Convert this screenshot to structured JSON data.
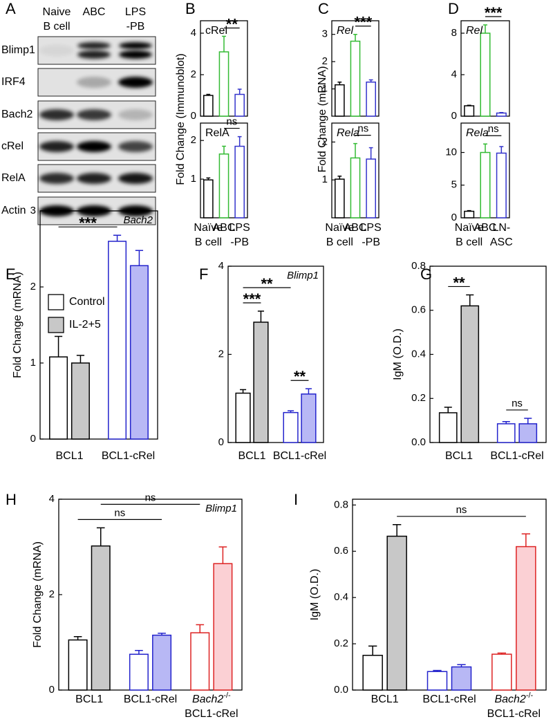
{
  "blot": {
    "panel": "A",
    "lanes": [
      [
        "Naive",
        "B cell"
      ],
      [
        "ABC"
      ],
      [
        "LPS",
        "-PB"
      ]
    ],
    "rows": [
      "Blimp1",
      "IRF4",
      "Bach2",
      "cRel",
      "RelA",
      "Actin"
    ]
  },
  "chart_data": [
    {
      "type": "bar",
      "panel": "B",
      "ylabel": "Fold Change (Immunoblot)",
      "title_italic": false,
      "categories": [
        [
          "Naïve",
          "B cell"
        ],
        [
          "ABC"
        ],
        [
          "LPS",
          "-PB"
        ]
      ],
      "colors": [
        "#000000",
        "#33bb33",
        "#3333cc"
      ],
      "subplots": [
        {
          "title": "cRel",
          "values": [
            1.0,
            3.1,
            1.05
          ],
          "errors": [
            0.05,
            0.75,
            0.25
          ],
          "ylim": [
            0,
            4.6
          ],
          "yticks": [
            0,
            2,
            4
          ],
          "annotations": [
            {
              "text": "**",
              "between": [
                1,
                2
              ]
            }
          ]
        },
        {
          "title": "RelA",
          "values": [
            0.98,
            1.65,
            1.85
          ],
          "errors": [
            0.05,
            0.2,
            0.25
          ],
          "ylim": [
            0,
            2.45
          ],
          "yticks": [
            1,
            2
          ],
          "annotations": [
            {
              "text": "ns",
              "between": [
                1,
                2
              ]
            }
          ]
        }
      ]
    },
    {
      "type": "bar",
      "panel": "C",
      "ylabel": "Fold Change (mRNA)",
      "title_italic": true,
      "categories": [
        [
          "Naïve",
          "B cell"
        ],
        [
          "ABC"
        ],
        [
          "LPS",
          "-PB"
        ]
      ],
      "colors": [
        "#000000",
        "#33bb33",
        "#3333cc"
      ],
      "subplots": [
        {
          "title": "Rel",
          "values": [
            1.15,
            2.75,
            1.25
          ],
          "errors": [
            0.1,
            0.25,
            0.08
          ],
          "ylim": [
            0,
            3.5
          ],
          "yticks": [
            1,
            2,
            3
          ],
          "annotations": [
            {
              "text": "***",
              "between": [
                1,
                2
              ]
            }
          ]
        },
        {
          "title": "Rela",
          "values": [
            1.02,
            1.58,
            1.55
          ],
          "errors": [
            0.08,
            0.38,
            0.3
          ],
          "ylim": [
            0,
            2.5
          ],
          "yticks": [
            1,
            2
          ],
          "annotations": [
            {
              "text": "ns",
              "between": [
                1,
                2
              ]
            }
          ]
        }
      ]
    },
    {
      "type": "bar",
      "panel": "D",
      "title_italic": true,
      "categories": [
        [
          "Naïve",
          "B cell"
        ],
        [
          "ABC"
        ],
        [
          "LN-",
          "ASC"
        ]
      ],
      "colors": [
        "#000000",
        "#33bb33",
        "#3333cc"
      ],
      "subplots": [
        {
          "title": "Rel",
          "values": [
            1.0,
            8.0,
            0.3
          ],
          "errors": [
            0.05,
            0.8,
            0.05
          ],
          "ylim": [
            0,
            9.2
          ],
          "yticks": [
            0,
            4,
            8
          ],
          "annotations": [
            {
              "text": "***",
              "between": [
                1,
                2
              ]
            }
          ]
        },
        {
          "title": "Rela",
          "values": [
            1.0,
            10.0,
            9.9
          ],
          "errors": [
            0.1,
            1.3,
            1.0
          ],
          "ylim": [
            0,
            14.5
          ],
          "yticks": [
            0,
            5,
            10
          ],
          "annotations": [
            {
              "text": "ns",
              "between": [
                1,
                2
              ]
            }
          ]
        }
      ]
    },
    {
      "type": "grouped_bar",
      "panel": "E",
      "title": "Bach2",
      "title_italic": true,
      "ylabel": "Fold Change (mRNA)",
      "categories": [
        [
          "BCL1"
        ],
        [
          "BCL1-cRel"
        ]
      ],
      "group_colors": [
        "#000000",
        "#2222cc"
      ],
      "series": [
        {
          "name": "Control",
          "fills": [
            "#ffffff",
            "#ffffff"
          ],
          "values": [
            1.08,
            2.6
          ],
          "errors": [
            0.27,
            0.08
          ]
        },
        {
          "name": "IL-2+5",
          "fills": [
            "#c8c8c8",
            "#b8b8f5"
          ],
          "values": [
            1.0,
            2.28
          ],
          "errors": [
            0.1,
            0.2
          ]
        }
      ],
      "ylim": [
        0,
        3
      ],
      "yticks": [
        0,
        1,
        2,
        3
      ],
      "legend": "upper left",
      "annotations": [
        {
          "text": "***",
          "between": [
            0,
            2
          ]
        }
      ]
    },
    {
      "type": "grouped_bar",
      "panel": "F",
      "title": "Blimp1",
      "title_italic": true,
      "categories": [
        [
          "BCL1"
        ],
        [
          "BCL1-cRel"
        ]
      ],
      "group_colors": [
        "#000000",
        "#2222cc"
      ],
      "series": [
        {
          "fills": [
            "#ffffff",
            "#ffffff"
          ],
          "values": [
            1.12,
            0.68
          ],
          "errors": [
            0.08,
            0.04
          ]
        },
        {
          "fills": [
            "#c8c8c8",
            "#b8b8f5"
          ],
          "values": [
            2.73,
            1.1
          ],
          "errors": [
            0.25,
            0.12
          ]
        }
      ],
      "ylim": [
        0,
        4
      ],
      "yticks": [
        0,
        2,
        4
      ],
      "annotations": [
        {
          "text": "***",
          "between": [
            0,
            1
          ]
        },
        {
          "text": "**",
          "between": [
            0,
            2
          ]
        },
        {
          "text": "**",
          "between": [
            2,
            3
          ]
        }
      ]
    },
    {
      "type": "grouped_bar",
      "panel": "G",
      "ylabel": "IgM (O.D.)",
      "categories": [
        [
          "BCL1"
        ],
        [
          "BCL1-cRel"
        ]
      ],
      "group_colors": [
        "#000000",
        "#2222cc"
      ],
      "series": [
        {
          "fills": [
            "#ffffff",
            "#ffffff"
          ],
          "values": [
            0.135,
            0.085
          ],
          "errors": [
            0.025,
            0.01
          ]
        },
        {
          "fills": [
            "#c8c8c8",
            "#b8b8f5"
          ],
          "values": [
            0.62,
            0.085
          ],
          "errors": [
            0.05,
            0.025
          ]
        }
      ],
      "ylim": [
        0,
        0.8
      ],
      "yticks": [
        {
          "value": 0,
          "label": "0.0"
        },
        0.2,
        0.4,
        0.6,
        0.8
      ],
      "annotations": [
        {
          "text": "**",
          "between": [
            0,
            1
          ]
        },
        {
          "text": "ns",
          "between": [
            2,
            3
          ]
        }
      ]
    },
    {
      "type": "grouped_bar",
      "panel": "H",
      "title": "Blimp1",
      "title_italic": true,
      "ylabel": "Fold Change (mRNA)",
      "categories": [
        [
          "BCL1"
        ],
        [
          "BCL1-cRel"
        ],
        [
          {
            "italic": "Bach2",
            "sup": "-/-"
          },
          "BCL1-cRel"
        ]
      ],
      "group_colors": [
        "#000000",
        "#2222cc",
        "#dd2222"
      ],
      "series": [
        {
          "fills": [
            "#ffffff",
            "#ffffff",
            "#ffffff"
          ],
          "values": [
            1.05,
            0.75,
            1.2
          ],
          "errors": [
            0.07,
            0.08,
            0.17
          ]
        },
        {
          "fills": [
            "#c8c8c8",
            "#b8b8f5",
            "#fbd0d4"
          ],
          "values": [
            3.02,
            1.15,
            2.65
          ],
          "errors": [
            0.38,
            0.04,
            0.35
          ]
        }
      ],
      "ylim": [
        0,
        4
      ],
      "yticks": [
        0,
        2,
        4
      ],
      "annotations": [
        {
          "text": "ns",
          "between": [
            0,
            3
          ]
        },
        {
          "text": "ns",
          "between": [
            1,
            4
          ]
        }
      ]
    },
    {
      "type": "grouped_bar",
      "panel": "I",
      "ylabel": "IgM (O.D.)",
      "categories": [
        [
          "BCL1"
        ],
        [
          "BCL1-cRel"
        ],
        [
          {
            "italic": "Bach2",
            "sup": "-/-"
          },
          "BCL1-cRel"
        ]
      ],
      "group_colors": [
        "#000000",
        "#2222cc",
        "#dd2222"
      ],
      "series": [
        {
          "fills": [
            "#ffffff",
            "#ffffff",
            "#ffffff"
          ],
          "values": [
            0.15,
            0.08,
            0.155
          ],
          "errors": [
            0.04,
            0.005,
            0.005
          ]
        },
        {
          "fills": [
            "#c8c8c8",
            "#b8b8f5",
            "#fbd0d4"
          ],
          "values": [
            0.665,
            0.1,
            0.62
          ],
          "errors": [
            0.05,
            0.01,
            0.055
          ]
        }
      ],
      "ylim": [
        0,
        0.825
      ],
      "yticks": [
        {
          "value": 0,
          "label": "0.0"
        },
        0.2,
        0.4,
        0.6,
        0.8
      ],
      "annotations": [
        {
          "text": "ns",
          "between": [
            1,
            5
          ]
        }
      ]
    }
  ]
}
